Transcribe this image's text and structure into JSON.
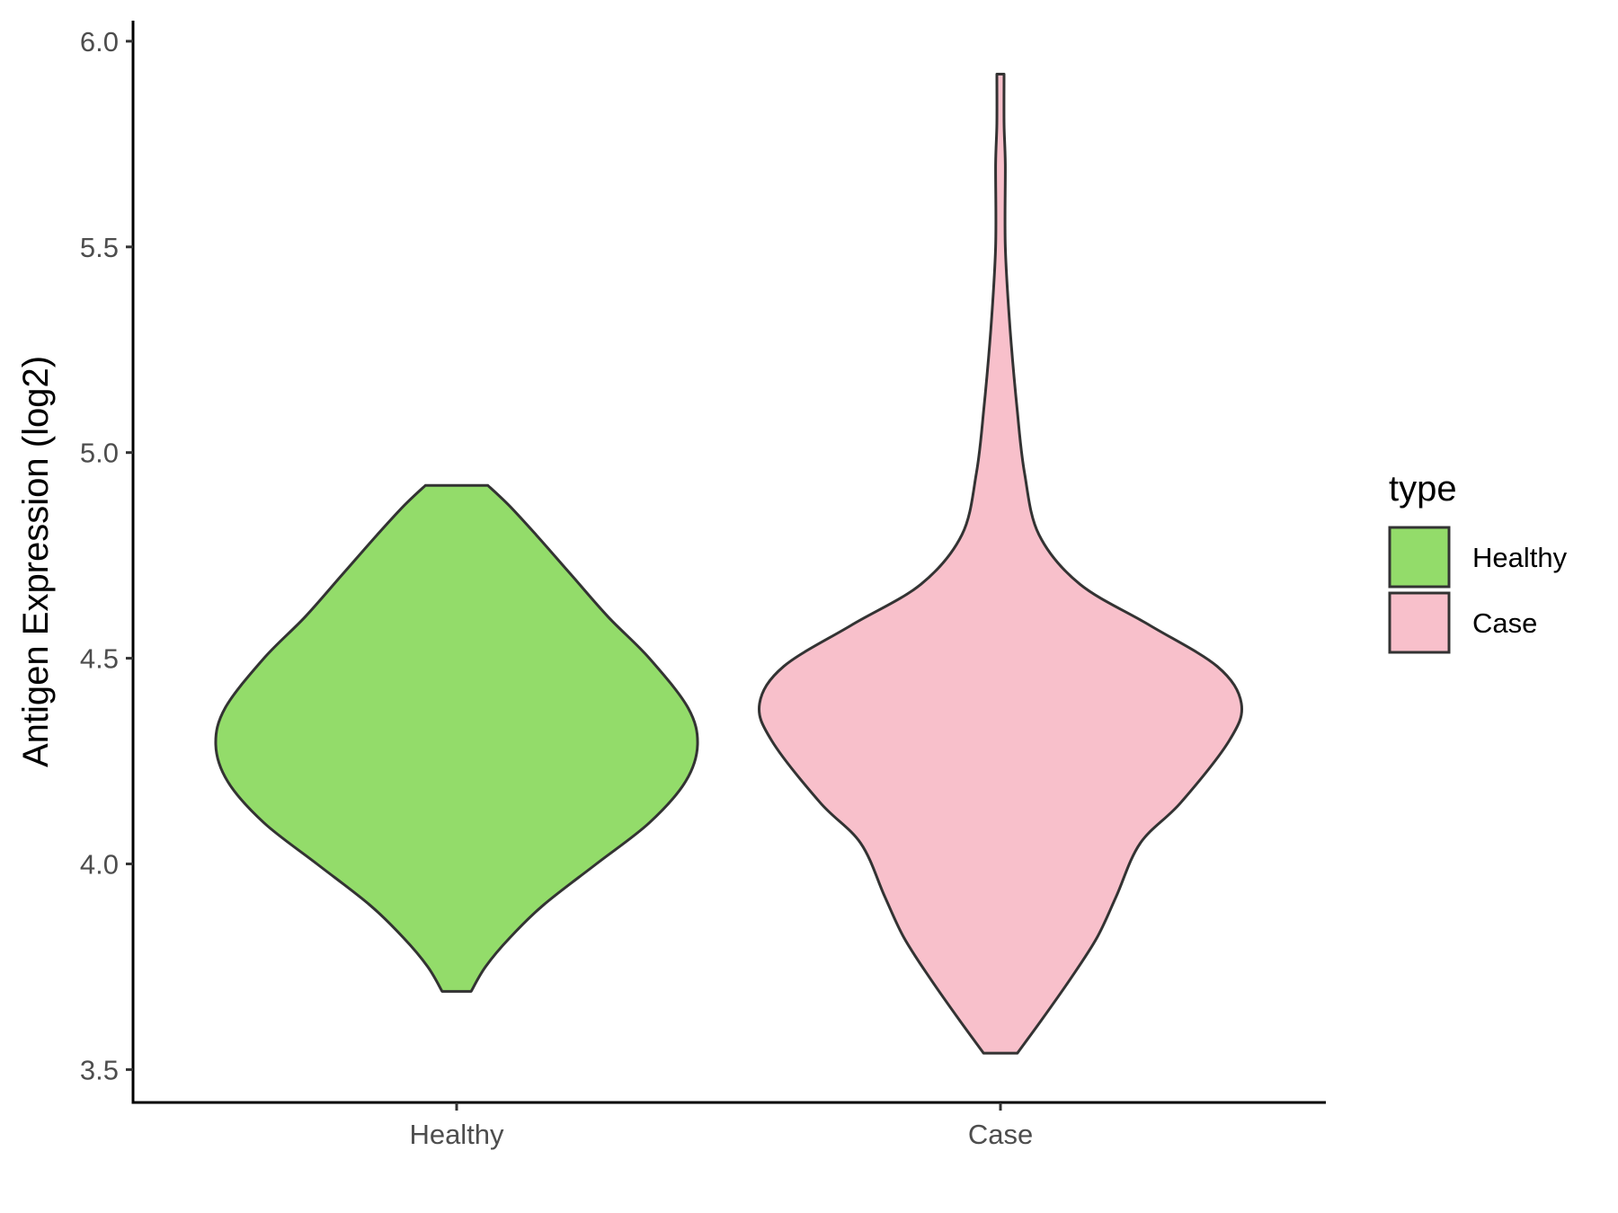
{
  "chart_data": {
    "type": "violin",
    "title": "",
    "xlabel": "",
    "ylabel": "Antigen Expression (log2)",
    "ylim": [
      3.42,
      6.05
    ],
    "yticks": [
      "3.5",
      "4.0",
      "4.5",
      "5.0",
      "5.5",
      "6.0"
    ],
    "categories": [
      "Healthy",
      "Case"
    ],
    "grid": false,
    "legend": {
      "title": "type",
      "placement": "right",
      "entries": [
        {
          "label": "Healthy",
          "color": "#93dc6a"
        },
        {
          "label": "Case",
          "color": "#f8c0cb"
        }
      ]
    },
    "series": [
      {
        "name": "Healthy",
        "color": "#93dc6a",
        "min": 3.69,
        "max": 4.92,
        "density_profile": [
          [
            3.69,
            0.06
          ],
          [
            3.75,
            0.12
          ],
          [
            3.82,
            0.22
          ],
          [
            3.9,
            0.36
          ],
          [
            4.0,
            0.58
          ],
          [
            4.1,
            0.8
          ],
          [
            4.2,
            0.95
          ],
          [
            4.29,
            1.0
          ],
          [
            4.38,
            0.96
          ],
          [
            4.5,
            0.8
          ],
          [
            4.6,
            0.63
          ],
          [
            4.7,
            0.48
          ],
          [
            4.8,
            0.33
          ],
          [
            4.87,
            0.22
          ],
          [
            4.92,
            0.13
          ]
        ]
      },
      {
        "name": "Case",
        "color": "#f8c0cb",
        "min": 3.54,
        "max": 5.92,
        "density_profile": [
          [
            3.54,
            0.07
          ],
          [
            3.62,
            0.17
          ],
          [
            3.72,
            0.29
          ],
          [
            3.82,
            0.4
          ],
          [
            3.92,
            0.48
          ],
          [
            4.05,
            0.58
          ],
          [
            4.15,
            0.75
          ],
          [
            4.3,
            0.95
          ],
          [
            4.39,
            1.0
          ],
          [
            4.48,
            0.9
          ],
          [
            4.58,
            0.62
          ],
          [
            4.68,
            0.33
          ],
          [
            4.8,
            0.16
          ],
          [
            4.95,
            0.1
          ],
          [
            5.1,
            0.07
          ],
          [
            5.3,
            0.04
          ],
          [
            5.5,
            0.02
          ],
          [
            5.7,
            0.02
          ],
          [
            5.8,
            0.015
          ],
          [
            5.92,
            0.015
          ]
        ]
      }
    ]
  }
}
